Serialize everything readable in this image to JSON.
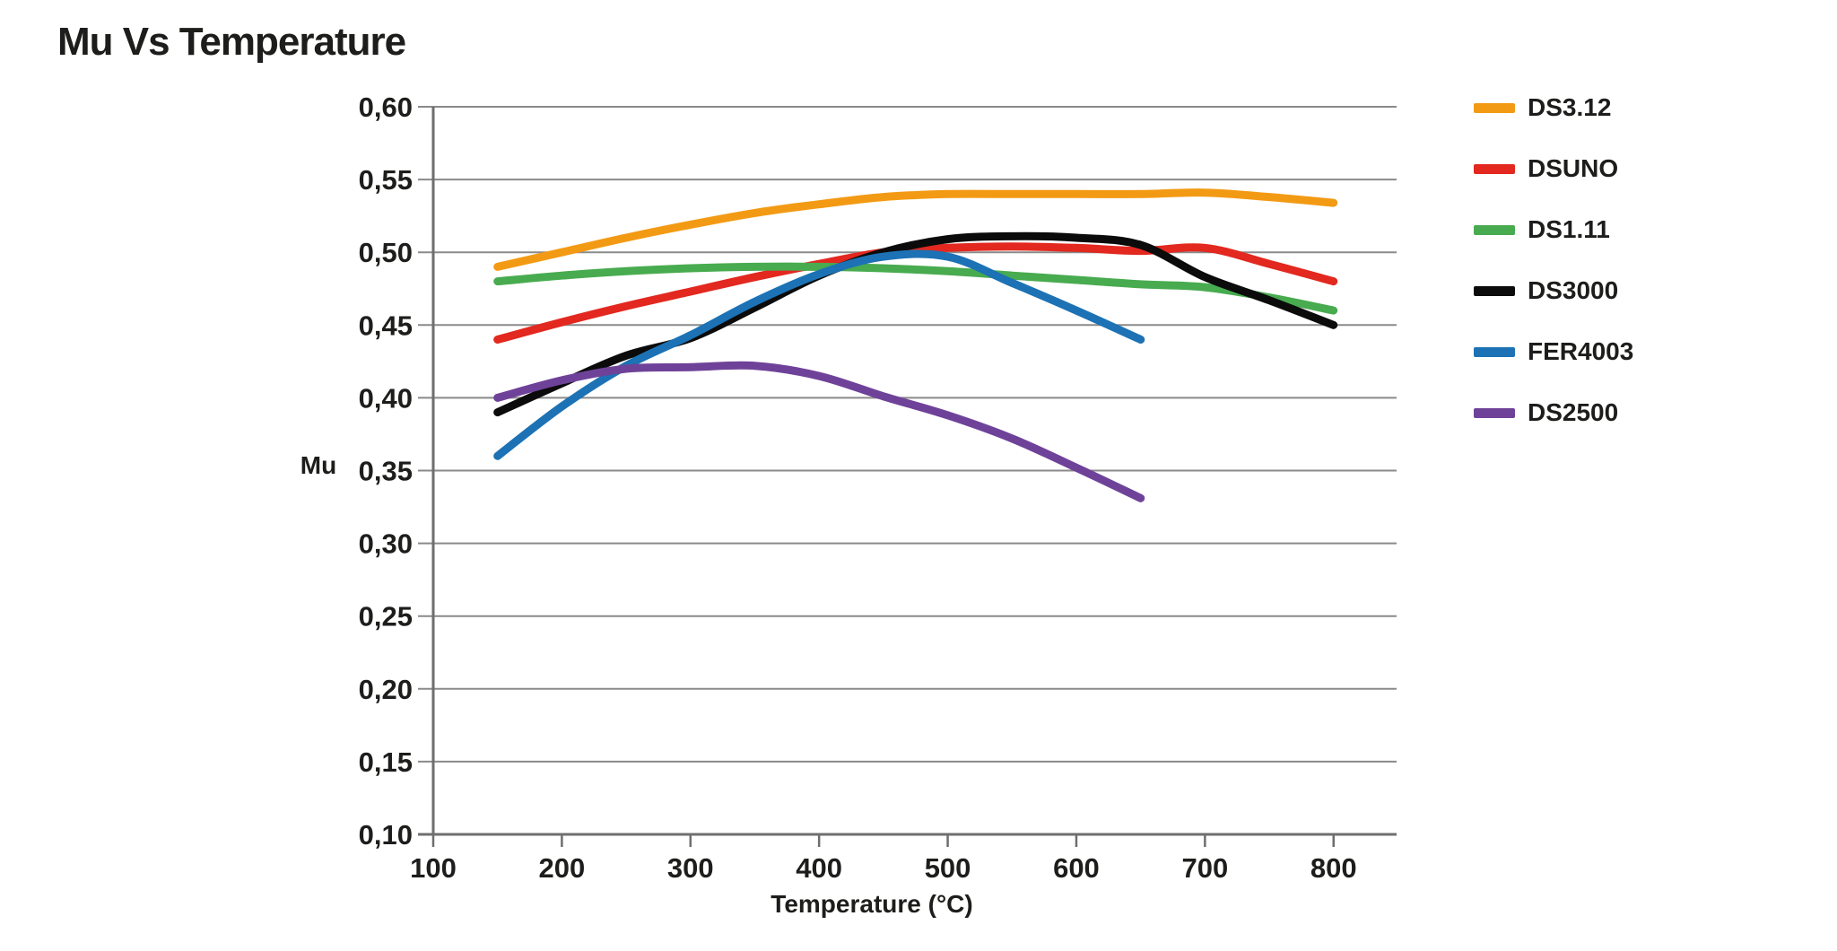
{
  "title": "Mu Vs Temperature",
  "colors": {
    "background": "#ffffff",
    "text": "#1d1d1b",
    "grid": "#8a8a8a",
    "axis": "#6e6e6e"
  },
  "chart_data": {
    "type": "line",
    "title": "Mu Vs Temperature",
    "xlabel": "Temperature (°C)",
    "ylabel": "Mu",
    "xlim": [
      100,
      849
    ],
    "ylim": [
      0.1,
      0.6
    ],
    "x_ticks": [
      100,
      200,
      300,
      400,
      500,
      600,
      700,
      800
    ],
    "x_tick_labels": [
      "100",
      "200",
      "300",
      "400",
      "500",
      "600",
      "700",
      "800"
    ],
    "y_ticks": [
      0.1,
      0.15,
      0.2,
      0.25,
      0.3,
      0.35,
      0.4,
      0.45,
      0.5,
      0.55,
      0.6
    ],
    "y_tick_labels": [
      "0,10",
      "0,15",
      "0,20",
      "0,25",
      "0,30",
      "0,35",
      "0,40",
      "0,45",
      "0,50",
      "0,55",
      "0,60"
    ],
    "decimal_separator": ",",
    "grid": "horizontal-only",
    "legend_position": "right",
    "line_width": 9,
    "series": [
      {
        "name": "DS3.12",
        "color": "#F39A14",
        "x": [
          150,
          200,
          250,
          300,
          350,
          400,
          450,
          500,
          550,
          600,
          650,
          700,
          750,
          800
        ],
        "y": [
          0.49,
          0.5,
          0.51,
          0.519,
          0.527,
          0.533,
          0.538,
          0.54,
          0.54,
          0.54,
          0.54,
          0.541,
          0.538,
          0.534
        ]
      },
      {
        "name": "DSUNO",
        "color": "#E2281F",
        "x": [
          150,
          200,
          250,
          300,
          350,
          400,
          450,
          500,
          550,
          600,
          650,
          700,
          750,
          800
        ],
        "y": [
          0.44,
          0.452,
          0.463,
          0.473,
          0.483,
          0.492,
          0.5,
          0.503,
          0.504,
          0.503,
          0.501,
          0.503,
          0.492,
          0.48
        ]
      },
      {
        "name": "DS1.11",
        "color": "#48AB4F",
        "x": [
          150,
          200,
          250,
          300,
          350,
          400,
          450,
          500,
          550,
          600,
          650,
          700,
          750,
          800
        ],
        "y": [
          0.48,
          0.484,
          0.487,
          0.489,
          0.49,
          0.49,
          0.489,
          0.487,
          0.484,
          0.481,
          0.478,
          0.476,
          0.469,
          0.46
        ]
      },
      {
        "name": "DS3000",
        "color": "#0b0b0b",
        "x": [
          150,
          200,
          250,
          300,
          350,
          400,
          450,
          500,
          550,
          600,
          650,
          700,
          750,
          800
        ],
        "y": [
          0.39,
          0.41,
          0.429,
          0.441,
          0.462,
          0.484,
          0.5,
          0.509,
          0.511,
          0.51,
          0.505,
          0.483,
          0.467,
          0.45
        ]
      },
      {
        "name": "FER4003",
        "color": "#1C72B4",
        "x": [
          150,
          200,
          250,
          300,
          350,
          400,
          450,
          500,
          550,
          600,
          650
        ],
        "y": [
          0.36,
          0.394,
          0.422,
          0.443,
          0.466,
          0.485,
          0.497,
          0.497,
          0.479,
          0.46,
          0.44
        ]
      },
      {
        "name": "DS2500",
        "color": "#6F4299",
        "x": [
          150,
          200,
          250,
          300,
          350,
          400,
          450,
          500,
          550,
          600,
          650
        ],
        "y": [
          0.4,
          0.412,
          0.42,
          0.421,
          0.422,
          0.415,
          0.401,
          0.388,
          0.372,
          0.352,
          0.331
        ]
      }
    ]
  }
}
